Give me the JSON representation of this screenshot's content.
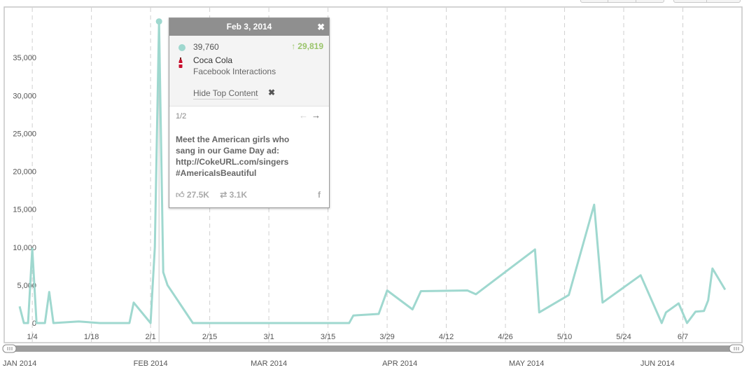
{
  "chart_data": {
    "type": "line",
    "ylim": [
      0,
      40000
    ],
    "y_ticks": [
      {
        "value": 0,
        "label": "0"
      },
      {
        "value": 5000,
        "label": "5,000"
      },
      {
        "value": 10000,
        "label": "10,000"
      },
      {
        "value": 15000,
        "label": "15,000"
      },
      {
        "value": 20000,
        "label": "20,000"
      },
      {
        "value": 25000,
        "label": "25,000"
      },
      {
        "value": 30000,
        "label": "30,000"
      },
      {
        "value": 35000,
        "label": "35,000"
      }
    ],
    "x_range": [
      "2013-12-31",
      "2014-06-21"
    ],
    "x_ticks": [
      {
        "date": "2014-01-04",
        "label": "1/4"
      },
      {
        "date": "2014-01-18",
        "label": "1/18"
      },
      {
        "date": "2014-02-01",
        "label": "2/1"
      },
      {
        "date": "2014-02-15",
        "label": "2/15"
      },
      {
        "date": "2014-03-01",
        "label": "3/1"
      },
      {
        "date": "2014-03-15",
        "label": "3/15"
      },
      {
        "date": "2014-03-29",
        "label": "3/29"
      },
      {
        "date": "2014-04-12",
        "label": "4/12"
      },
      {
        "date": "2014-04-26",
        "label": "4/26"
      },
      {
        "date": "2014-05-10",
        "label": "5/10"
      },
      {
        "date": "2014-05-24",
        "label": "5/24"
      },
      {
        "date": "2014-06-07",
        "label": "6/7"
      }
    ],
    "grid": "vertical dashed",
    "highlight": {
      "date": "2014-02-03",
      "value": 39760
    },
    "series": [
      {
        "color": "#9fd8cf",
        "points": [
          [
            "2014-01-01",
            2200
          ],
          [
            "2014-01-02",
            0
          ],
          [
            "2014-01-03",
            0
          ],
          [
            "2014-01-04",
            9800
          ],
          [
            "2014-01-05",
            0
          ],
          [
            "2014-01-06",
            0
          ],
          [
            "2014-01-07",
            0
          ],
          [
            "2014-01-08",
            4100
          ],
          [
            "2014-01-09",
            0
          ],
          [
            "2014-01-15",
            200
          ],
          [
            "2014-01-20",
            0
          ],
          [
            "2014-01-27",
            0
          ],
          [
            "2014-01-28",
            2700
          ],
          [
            "2014-02-01",
            0
          ],
          [
            "2014-02-02",
            10000
          ],
          [
            "2014-02-03",
            39760
          ],
          [
            "2014-02-04",
            6700
          ],
          [
            "2014-02-05",
            5000
          ],
          [
            "2014-02-11",
            0
          ],
          [
            "2014-02-17",
            0
          ],
          [
            "2014-03-20",
            0
          ],
          [
            "2014-03-21",
            1000
          ],
          [
            "2014-03-27",
            1200
          ],
          [
            "2014-03-29",
            4300
          ],
          [
            "2014-04-04",
            1800
          ],
          [
            "2014-04-06",
            4200
          ],
          [
            "2014-04-17",
            4300
          ],
          [
            "2014-04-19",
            3800
          ],
          [
            "2014-05-03",
            9700
          ],
          [
            "2014-05-04",
            1400
          ],
          [
            "2014-05-11",
            3700
          ],
          [
            "2014-05-17",
            15600
          ],
          [
            "2014-05-19",
            2700
          ],
          [
            "2014-05-28",
            6300
          ],
          [
            "2014-06-02",
            0
          ],
          [
            "2014-06-03",
            1400
          ],
          [
            "2014-06-06",
            2600
          ],
          [
            "2014-06-08",
            0
          ],
          [
            "2014-06-10",
            1500
          ],
          [
            "2014-06-12",
            1600
          ],
          [
            "2014-06-13",
            3000
          ],
          [
            "2014-06-14",
            7200
          ],
          [
            "2014-06-17",
            4400
          ]
        ]
      }
    ]
  },
  "navigator": {
    "labels": [
      {
        "date": "2014-01-01",
        "label": "JAN 2014"
      },
      {
        "date": "2014-02-01",
        "label": "FEB 2014"
      },
      {
        "date": "2014-03-01",
        "label": "MAR 2014"
      },
      {
        "date": "2014-04-01",
        "label": "APR 2014"
      },
      {
        "date": "2014-05-01",
        "label": "MAY 2014"
      },
      {
        "date": "2014-06-01",
        "label": "JUN 2014"
      }
    ]
  },
  "tooltip": {
    "date": "Feb 3, 2014",
    "close_icon": "close-icon",
    "value": "39,760",
    "change": "29,819",
    "change_direction": "up",
    "change_color": "#9ac46b",
    "brand": "Coca Cola",
    "metric": "Facebook Interactions",
    "hide_label": "Hide Top Content",
    "pager": "1/2",
    "post_lines": [
      "Meet the American girls who",
      "sang in our Game Day ad:",
      "http://CokeURL.com/singers",
      "#AmericaIsBeautiful"
    ],
    "likes": "27.5K",
    "shares": "3.1K"
  }
}
